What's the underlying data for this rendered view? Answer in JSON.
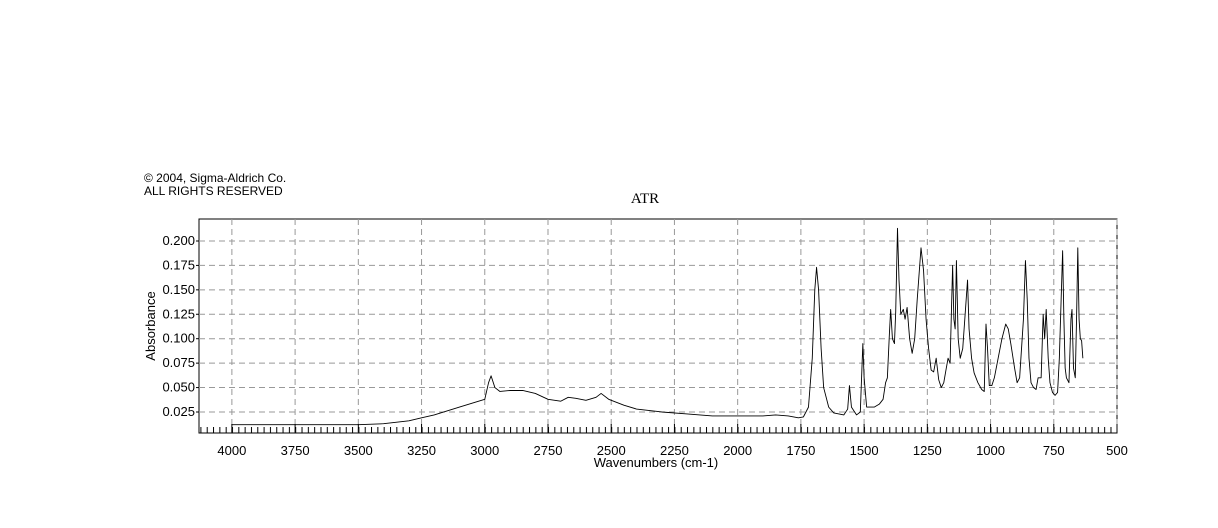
{
  "chart_data": {
    "type": "line",
    "notice": [
      "© 2004, Sigma-Aldrich Co.",
      "ALL RIGHTS RESERVED"
    ],
    "title": "ATR",
    "xlabel": "Wavenumbers (cm-1)",
    "ylabel": "Absorbance",
    "color": "#000000",
    "grid": true,
    "xlim": [
      4130,
      500
    ],
    "ylim": [
      0.0035,
      0.2225
    ],
    "xticks": [
      4000,
      3750,
      3500,
      3250,
      3000,
      2750,
      2500,
      2250,
      2000,
      1750,
      1500,
      1250,
      1000,
      750,
      500
    ],
    "yticks": [
      0.025,
      {
        "value": 0.05,
        "label": "0.050"
      },
      0.075,
      {
        "value": 0.1,
        "label": "0.100"
      },
      0.125,
      {
        "value": 0.15,
        "label": "0.150"
      },
      0.175,
      {
        "value": 0.2,
        "label": "0.200"
      }
    ],
    "x": [
      4000,
      3750,
      3500,
      3400,
      3300,
      3250,
      3200,
      3100,
      3050,
      3000,
      2985,
      2975,
      2960,
      2940,
      2900,
      2850,
      2800,
      2750,
      2700,
      2670,
      2640,
      2600,
      2560,
      2540,
      2510,
      2450,
      2400,
      2300,
      2200,
      2100,
      2000,
      1900,
      1850,
      1800,
      1760,
      1740,
      1720,
      1705,
      1695,
      1688,
      1680,
      1670,
      1660,
      1640,
      1620,
      1580,
      1565,
      1558,
      1550,
      1530,
      1515,
      1505,
      1500,
      1490,
      1460,
      1440,
      1425,
      1415,
      1408,
      1400,
      1395,
      1388,
      1380,
      1375,
      1368,
      1362,
      1355,
      1345,
      1338,
      1330,
      1320,
      1310,
      1300,
      1290,
      1275,
      1265,
      1255,
      1245,
      1235,
      1225,
      1215,
      1205,
      1195,
      1185,
      1175,
      1168,
      1160,
      1150,
      1145,
      1140,
      1135,
      1128,
      1120,
      1110,
      1091,
      1085,
      1075,
      1065,
      1050,
      1035,
      1025,
      1018,
      1012,
      1005,
      995,
      985,
      970,
      955,
      940,
      930,
      920,
      905,
      895,
      885,
      870,
      862,
      855,
      848,
      840,
      830,
      820,
      812,
      800,
      792,
      786,
      780,
      772,
      765,
      755,
      745,
      735,
      728,
      715,
      710,
      705,
      700,
      690,
      682,
      678,
      672,
      665,
      660,
      655,
      650,
      645,
      640,
      635
    ],
    "values": [
      0.012,
      0.012,
      0.012,
      0.013,
      0.016,
      0.019,
      0.022,
      0.03,
      0.034,
      0.038,
      0.055,
      0.062,
      0.05,
      0.046,
      0.047,
      0.047,
      0.044,
      0.038,
      0.036,
      0.04,
      0.039,
      0.037,
      0.04,
      0.044,
      0.038,
      0.032,
      0.028,
      0.025,
      0.023,
      0.021,
      0.021,
      0.021,
      0.022,
      0.021,
      0.019,
      0.02,
      0.03,
      0.08,
      0.15,
      0.173,
      0.15,
      0.09,
      0.05,
      0.03,
      0.024,
      0.022,
      0.028,
      0.052,
      0.03,
      0.022,
      0.025,
      0.095,
      0.06,
      0.03,
      0.03,
      0.033,
      0.038,
      0.055,
      0.06,
      0.105,
      0.13,
      0.1,
      0.095,
      0.128,
      0.213,
      0.16,
      0.125,
      0.13,
      0.12,
      0.132,
      0.1,
      0.085,
      0.1,
      0.14,
      0.193,
      0.17,
      0.12,
      0.09,
      0.068,
      0.066,
      0.08,
      0.058,
      0.05,
      0.055,
      0.07,
      0.08,
      0.075,
      0.175,
      0.12,
      0.11,
      0.18,
      0.1,
      0.08,
      0.09,
      0.16,
      0.11,
      0.08,
      0.065,
      0.055,
      0.048,
      0.046,
      0.115,
      0.09,
      0.052,
      0.052,
      0.06,
      0.08,
      0.1,
      0.115,
      0.11,
      0.095,
      0.07,
      0.055,
      0.06,
      0.12,
      0.18,
      0.14,
      0.08,
      0.055,
      0.05,
      0.048,
      0.06,
      0.06,
      0.125,
      0.1,
      0.13,
      0.08,
      0.055,
      0.045,
      0.042,
      0.045,
      0.08,
      0.19,
      0.12,
      0.07,
      0.06,
      0.055,
      0.12,
      0.13,
      0.07,
      0.06,
      0.12,
      0.193,
      0.12,
      0.1,
      0.098,
      0.08
    ]
  }
}
